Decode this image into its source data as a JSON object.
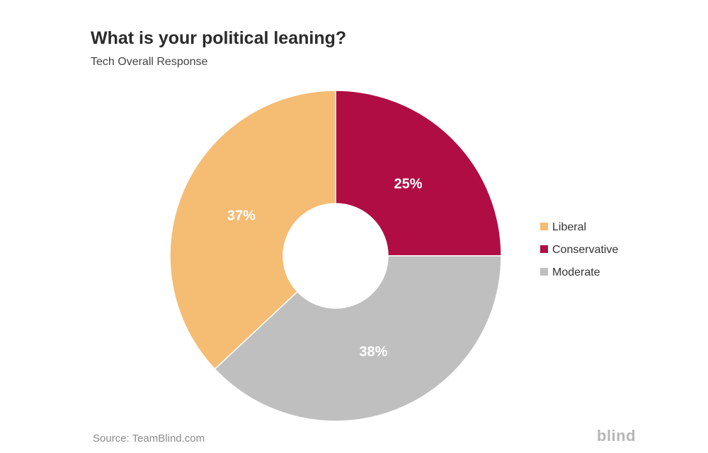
{
  "header": {
    "title": "What is your political leaning?",
    "subtitle": "Tech Overall Response"
  },
  "footer": {
    "source": "Source: TeamBlind.com",
    "logo": "blind"
  },
  "chart_data": {
    "type": "pie",
    "donut": true,
    "legend_position": "right",
    "slices": [
      {
        "name": "Liberal",
        "value": 37,
        "label": "37%",
        "color": "#F5BC73"
      },
      {
        "name": "Conservative",
        "value": 25,
        "label": "25%",
        "color": "#AF0D43"
      },
      {
        "name": "Moderate",
        "value": 38,
        "label": "38%",
        "color": "#BFBFBF"
      }
    ]
  }
}
